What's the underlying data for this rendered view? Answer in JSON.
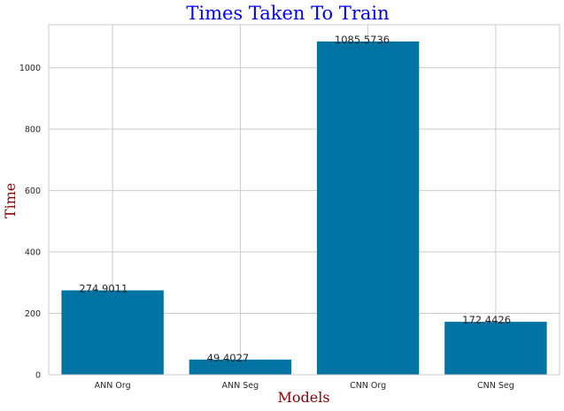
{
  "chart_data": {
    "type": "bar",
    "title": "Times Taken To Train",
    "xlabel": "Models",
    "ylabel": "Time",
    "categories": [
      "ANN Org",
      "ANN Seg",
      "CNN Org",
      "CNN Seg"
    ],
    "values": [
      274.9011,
      49.4027,
      1085.5736,
      172.4426
    ],
    "value_labels": [
      "274.9011",
      "49.4027",
      "1085.5736",
      "172.4426"
    ],
    "yticks": [
      0,
      200,
      400,
      600,
      800,
      1000
    ],
    "ylim": [
      0,
      1140
    ],
    "grid": true,
    "colors": {
      "bar": "#0173a3",
      "title": "#0000ff",
      "axis_label": "#8b0000",
      "grid": "#cccccc",
      "frame": "#cccccc"
    }
  }
}
